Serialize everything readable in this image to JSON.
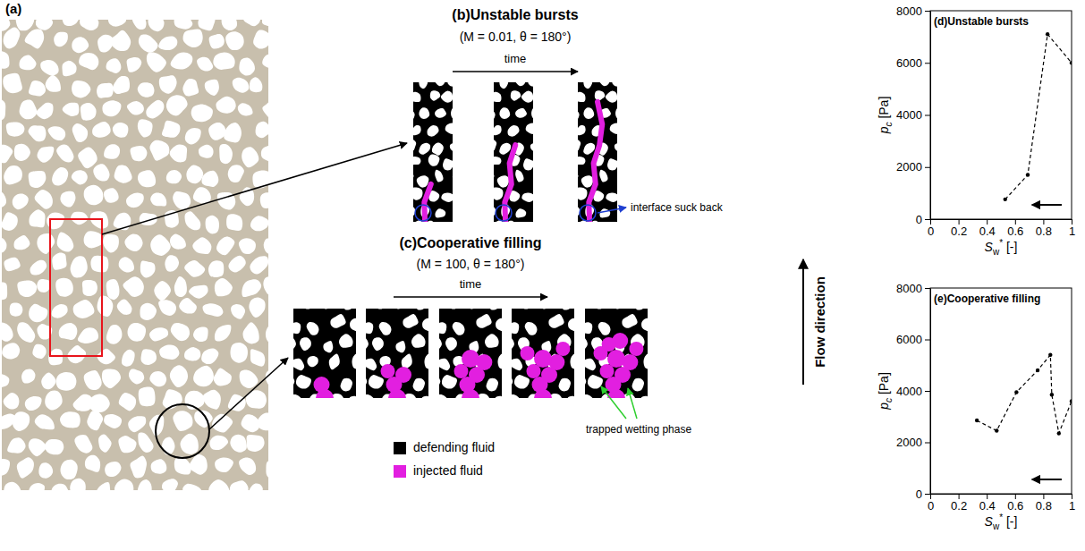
{
  "chart_data": [
    {
      "type": "line",
      "label": "(d)",
      "title": "Unstable bursts",
      "x": [
        0.53,
        0.69,
        0.83,
        1.0
      ],
      "values": [
        760,
        1700,
        7100,
        6000
      ],
      "xlim": [
        0,
        1
      ],
      "ylim": [
        0,
        8000
      ],
      "xticks": [
        0,
        0.2,
        0.4,
        0.6,
        0.8,
        1
      ],
      "yticks": [
        0,
        2000,
        4000,
        6000,
        8000
      ],
      "x_label": "Sw* [-]",
      "y_label": "pc [Pa]",
      "color": "#000000",
      "line_style": "dashed",
      "marker": "circle",
      "grid": false
    },
    {
      "type": "line",
      "label": "(e)",
      "title": "Cooperative filling",
      "x": [
        0.33,
        0.47,
        0.61,
        0.76,
        0.85,
        0.86,
        0.91,
        1.0
      ],
      "values": [
        2850,
        2450,
        3950,
        4800,
        5400,
        3850,
        2350,
        3600
      ],
      "xlim": [
        0,
        1
      ],
      "ylim": [
        0,
        8000
      ],
      "xticks": [
        0,
        0.2,
        0.4,
        0.6,
        0.8,
        1
      ],
      "yticks": [
        0,
        2000,
        4000,
        6000,
        8000
      ],
      "x_label": "Sw* [-]",
      "y_label": "pc [Pa]",
      "color": "#000000",
      "line_style": "dashed",
      "marker": "circle",
      "grid": false
    }
  ],
  "figure": {
    "a": {
      "label": "(a)"
    },
    "b": {
      "label": "(b)",
      "title": "Unstable bursts",
      "params": "(M = 0.01, θ = 180°)",
      "time": "time",
      "annotation": "interface suck back"
    },
    "c": {
      "label": "(c)",
      "title": "Cooperative filling",
      "params": "(M = 100, θ = 180°)",
      "time": "time",
      "annotation": "trapped wetting phase"
    },
    "legend": [
      {
        "label": "defending fluid",
        "color": "#000000"
      },
      {
        "label": "injected fluid",
        "color": "#e21fe0"
      }
    ],
    "flow": "Flow direction"
  }
}
